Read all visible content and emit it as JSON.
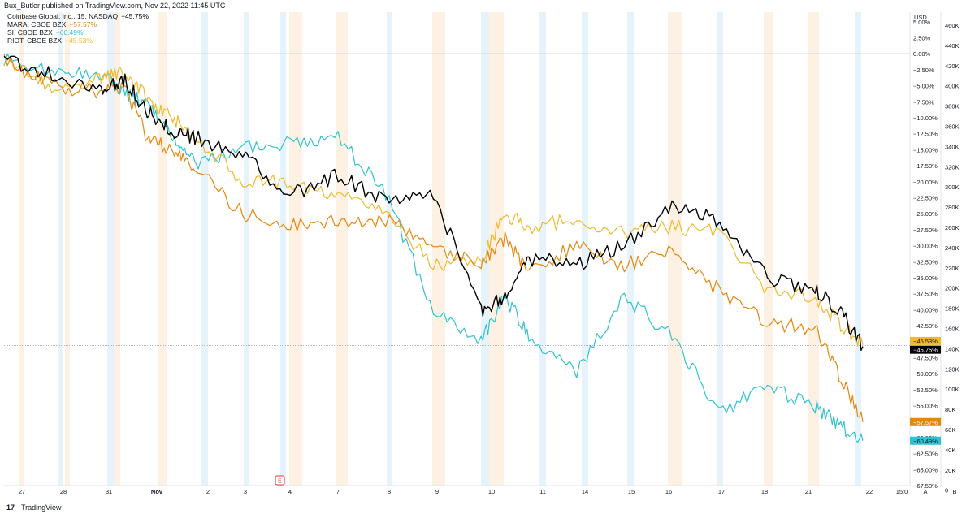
{
  "header": {
    "text": "Bux_Butler published on TradingView.com, Nov 22, 2022 11:45 UTC"
  },
  "footer": {
    "logo": "17",
    "brand": "TradingView"
  },
  "colors": {
    "COIN": "#000000",
    "MARA": "#e8860c",
    "SI": "#2ec3d0",
    "RIOT": "#f0b92c",
    "session_orange": "#fdf1e3",
    "session_blue": "#e6f3fb"
  },
  "chart_data": {
    "type": "line",
    "title": "",
    "x_tick_labels": [
      "27",
      "28",
      "31",
      "Nov",
      "2",
      "3",
      "4",
      "7",
      "8",
      "9",
      "10",
      "11",
      "14",
      "15",
      "16",
      "17",
      "18",
      "21",
      "22",
      "15:0"
    ],
    "y_left_unit": "USD",
    "y_left_ticks": [
      "5.00%",
      "2.50%",
      "0.00%",
      "−2.50%",
      "−5.00%",
      "−7.50%",
      "−10.00%",
      "−12.50%",
      "−15.00%",
      "−17.50%",
      "−20.00%",
      "−22.50%",
      "−25.00%",
      "−27.50%",
      "−30.00%",
      "−32.50%",
      "−35.00%",
      "−37.50%",
      "−40.00%",
      "−42.50%",
      "−45.00%",
      "−47.50%",
      "−50.00%",
      "−52.50%",
      "−55.00%",
      "−57.50%",
      "−60.00%",
      "−62.50%",
      "−65.00%",
      "−67.50%"
    ],
    "y_right_ticks": [
      "460K",
      "440K",
      "420K",
      "400K",
      "380K",
      "360K",
      "340K",
      "320K",
      "300K",
      "280K",
      "260K",
      "240K",
      "220K",
      "200K",
      "180K",
      "160K",
      "140K",
      "120K",
      "100K",
      "80K",
      "60K",
      "40K",
      "20K",
      "0"
    ],
    "ylim": [
      -67.5,
      6.5
    ],
    "axis_buttons": [
      "A",
      "B"
    ],
    "event_marker": "E",
    "series": [
      {
        "name": "Coinbase Global, Inc., 15, NASDAQ",
        "key": "COIN",
        "last_label": "−45.75%",
        "x": [
          0,
          1,
          2,
          2.5,
          3,
          3.5,
          4,
          5,
          6,
          7,
          8,
          9,
          10,
          10.5,
          11,
          12,
          13,
          14,
          15,
          16,
          17,
          17.5,
          18
        ],
        "y": [
          -1,
          -3,
          -6,
          -4,
          -9,
          -12,
          -13,
          -16,
          -22,
          -19,
          -23,
          -22,
          -40,
          -38,
          -32,
          -33,
          -30,
          -24,
          -26,
          -35,
          -37,
          -40,
          -45.75
        ]
      },
      {
        "name": "MARA, CBOE BZX",
        "key": "MARA",
        "last_label": "−57.57%",
        "x": [
          0,
          1,
          2,
          2.5,
          3,
          3.5,
          4,
          5,
          6,
          7,
          8,
          9,
          10,
          10.5,
          11,
          12,
          13,
          14,
          15,
          16,
          17,
          17.5,
          18
        ],
        "y": [
          -1,
          -5,
          -6,
          -5,
          -13,
          -15,
          -18,
          -25,
          -27,
          -26,
          -26,
          -30,
          -33,
          -29,
          -34,
          -30,
          -33,
          -31,
          -37,
          -42,
          -43,
          -50,
          -57.57
        ]
      },
      {
        "name": "SI, CBOE BZX",
        "key": "SI",
        "last_label": "−60.49%",
        "x": [
          0,
          1,
          2,
          2.5,
          3,
          3.5,
          4,
          5,
          6,
          7,
          8,
          9,
          10,
          10.5,
          11,
          12,
          13,
          14,
          15,
          16,
          17,
          17.5,
          18
        ],
        "y": [
          -1,
          -3,
          -3,
          -6,
          -8,
          -13,
          -17,
          -15,
          -14,
          -13,
          -22,
          -40,
          -45,
          -38,
          -44,
          -50,
          -38,
          -44,
          -56,
          -52,
          -55,
          -58,
          -60.49
        ]
      },
      {
        "name": "RIOT, CBOE BZX",
        "key": "RIOT",
        "last_label": "−45.53%",
        "x": [
          0,
          1,
          2,
          2.5,
          3,
          3.5,
          4,
          5,
          6,
          7,
          8,
          9,
          10,
          10.5,
          11,
          12,
          13,
          14,
          15,
          16,
          17,
          17.5,
          18
        ],
        "y": [
          -1,
          -5,
          -4,
          -3,
          -7,
          -10,
          -13,
          -20,
          -20,
          -22,
          -25,
          -33,
          -32,
          -25,
          -27,
          -26,
          -28,
          -27,
          -28,
          -37,
          -38,
          -42,
          -45.53
        ]
      }
    ]
  },
  "legend_values": {
    "COIN": "−45.75%",
    "MARA": "−57.57%",
    "SI": "−60.49%",
    "RIOT": "−45.53%"
  }
}
